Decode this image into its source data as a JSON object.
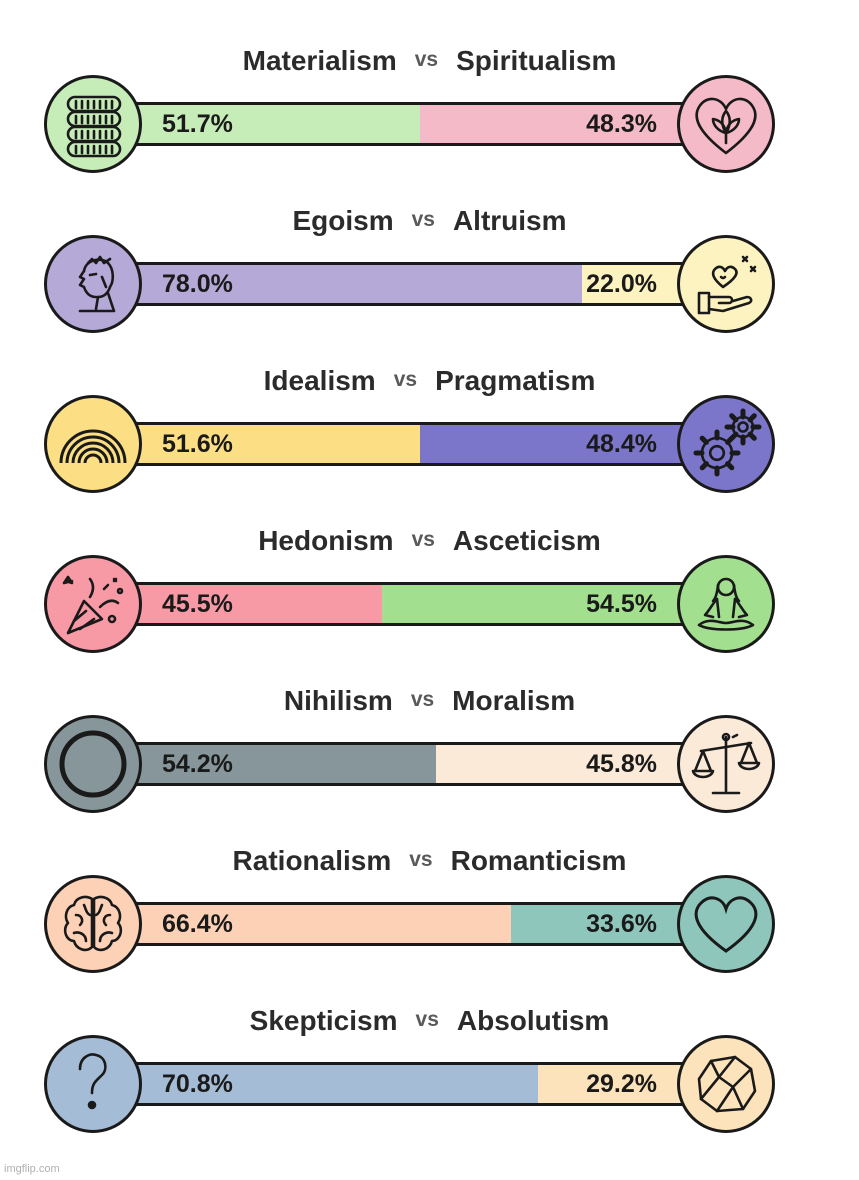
{
  "vs_label": "vs",
  "chart_data": [
    {
      "type": "bar",
      "left_label": "Materialism",
      "right_label": "Spiritualism",
      "left_value": 51.7,
      "right_value": 48.3,
      "left_text": "51.7%",
      "right_text": "48.3%",
      "left_color": "#c6ecb8",
      "right_color": "#f5bac8",
      "left_icon": "coin-stack-icon",
      "right_icon": "heart-flower-icon"
    },
    {
      "type": "bar",
      "left_label": "Egoism",
      "right_label": "Altruism",
      "left_value": 78.0,
      "right_value": 22.0,
      "left_text": "78.0%",
      "right_text": "22.0%",
      "left_color": "#b5a9d7",
      "right_color": "#fdf3c1",
      "left_icon": "portrait-sketch-icon",
      "right_icon": "giving-hand-heart-icon"
    },
    {
      "type": "bar",
      "left_label": "Idealism",
      "right_label": "Pragmatism",
      "left_value": 51.6,
      "right_value": 48.4,
      "left_text": "51.6%",
      "right_text": "48.4%",
      "left_color": "#fcdf85",
      "right_color": "#7b76c9",
      "left_icon": "rainbow-icon",
      "right_icon": "gears-icon"
    },
    {
      "type": "bar",
      "left_label": "Hedonism",
      "right_label": "Asceticism",
      "left_value": 45.5,
      "right_value": 54.5,
      "left_text": "45.5%",
      "right_text": "54.5%",
      "left_color": "#f79aa5",
      "right_color": "#a2e08f",
      "left_icon": "party-popper-icon",
      "right_icon": "meditation-icon"
    },
    {
      "type": "bar",
      "left_label": "Nihilism",
      "right_label": "Moralism",
      "left_value": 54.2,
      "right_value": 45.8,
      "left_text": "54.2%",
      "right_text": "45.8%",
      "left_color": "#87969a",
      "right_color": "#fcead9",
      "left_icon": "empty-circle-icon",
      "right_icon": "balance-scale-icon"
    },
    {
      "type": "bar",
      "left_label": "Rationalism",
      "right_label": "Romanticism",
      "left_value": 66.4,
      "right_value": 33.6,
      "left_text": "66.4%",
      "right_text": "33.6%",
      "left_color": "#fdd1b6",
      "right_color": "#8ec6bc",
      "left_icon": "brain-icon",
      "right_icon": "heart-icon"
    },
    {
      "type": "bar",
      "left_label": "Skepticism",
      "right_label": "Absolutism",
      "left_value": 70.8,
      "right_value": 29.2,
      "left_text": "70.8%",
      "right_text": "29.2%",
      "left_color": "#a4bcd6",
      "right_color": "#fde3bb",
      "left_icon": "question-mark-icon",
      "right_icon": "rock-icon"
    }
  ],
  "watermark": "imgflip.com"
}
